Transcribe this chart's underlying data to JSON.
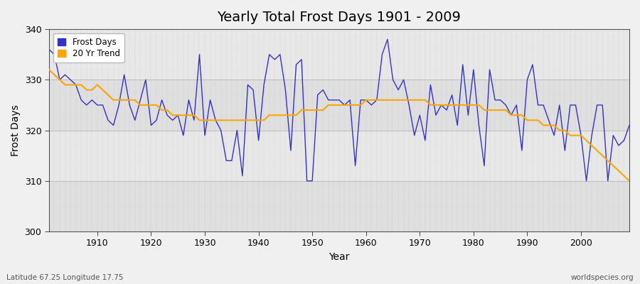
{
  "title": "Yearly Total Frost Days 1901 - 2009",
  "xlabel": "Year",
  "ylabel": "Frost Days",
  "lat_lon_label": "Latitude 67.25 Longitude 17.75",
  "watermark": "worldspecies.org",
  "years": [
    1901,
    1902,
    1903,
    1904,
    1905,
    1906,
    1907,
    1908,
    1909,
    1910,
    1911,
    1912,
    1913,
    1914,
    1915,
    1916,
    1917,
    1918,
    1919,
    1920,
    1921,
    1922,
    1923,
    1924,
    1925,
    1926,
    1927,
    1928,
    1929,
    1930,
    1931,
    1932,
    1933,
    1934,
    1935,
    1936,
    1937,
    1938,
    1939,
    1940,
    1941,
    1942,
    1943,
    1944,
    1945,
    1946,
    1947,
    1948,
    1949,
    1950,
    1951,
    1952,
    1953,
    1954,
    1955,
    1956,
    1957,
    1958,
    1959,
    1960,
    1961,
    1962,
    1963,
    1964,
    1965,
    1966,
    1967,
    1968,
    1969,
    1970,
    1971,
    1972,
    1973,
    1974,
    1975,
    1976,
    1977,
    1978,
    1979,
    1980,
    1981,
    1982,
    1983,
    1984,
    1985,
    1986,
    1987,
    1988,
    1989,
    1990,
    1991,
    1992,
    1993,
    1994,
    1995,
    1996,
    1997,
    1998,
    1999,
    2000,
    2001,
    2002,
    2003,
    2004,
    2005,
    2006,
    2007,
    2008,
    2009
  ],
  "frost_days": [
    336,
    335,
    330,
    331,
    330,
    329,
    326,
    325,
    326,
    325,
    325,
    322,
    321,
    325,
    331,
    325,
    322,
    326,
    330,
    321,
    322,
    326,
    323,
    322,
    323,
    319,
    326,
    322,
    335,
    319,
    326,
    322,
    320,
    314,
    314,
    320,
    311,
    329,
    328,
    318,
    329,
    335,
    334,
    335,
    328,
    316,
    333,
    334,
    310,
    310,
    327,
    328,
    326,
    326,
    326,
    325,
    326,
    313,
    326,
    326,
    325,
    326,
    335,
    338,
    330,
    328,
    330,
    325,
    319,
    323,
    318,
    329,
    323,
    325,
    324,
    327,
    321,
    333,
    323,
    332,
    321,
    313,
    332,
    326,
    326,
    325,
    323,
    325,
    316,
    330,
    333,
    325,
    325,
    322,
    319,
    325,
    316,
    325,
    325,
    319,
    310,
    319,
    325,
    325,
    310,
    319,
    317,
    318,
    321
  ],
  "trend_years": [
    1901,
    1902,
    1903,
    1904,
    1905,
    1906,
    1907,
    1908,
    1909,
    1910,
    1911,
    1912,
    1913,
    1914,
    1915,
    1916,
    1917,
    1918,
    1919,
    1920,
    1921,
    1922,
    1923,
    1924,
    1925,
    1926,
    1927,
    1928,
    1929,
    1930,
    1931,
    1932,
    1933,
    1934,
    1935,
    1936,
    1937,
    1938,
    1939,
    1940,
    1941,
    1942,
    1943,
    1944,
    1945,
    1946,
    1947,
    1948,
    1949,
    1950,
    1951,
    1952,
    1953,
    1954,
    1955,
    1956,
    1957,
    1958,
    1959,
    1960,
    1961,
    1962,
    1963,
    1964,
    1965,
    1966,
    1967,
    1968,
    1969,
    1970,
    1971,
    1972,
    1973,
    1974,
    1975,
    1976,
    1977,
    1978,
    1979,
    1980,
    1981,
    1982,
    1983,
    1984,
    1985,
    1986,
    1987,
    1988,
    1989,
    1990,
    1991,
    1992,
    1993,
    1994,
    1995,
    1996,
    1997,
    1998,
    1999,
    2000,
    2001,
    2002,
    2003,
    2004,
    2005,
    2006,
    2007,
    2008,
    2009
  ],
  "trend_values": [
    332,
    331,
    330,
    329,
    329,
    329,
    329,
    328,
    328,
    329,
    328,
    327,
    326,
    326,
    326,
    326,
    326,
    325,
    325,
    325,
    325,
    324,
    324,
    323,
    323,
    323,
    323,
    323,
    322,
    322,
    322,
    322,
    322,
    322,
    322,
    322,
    322,
    322,
    322,
    322,
    322,
    323,
    323,
    323,
    323,
    323,
    323,
    324,
    324,
    324,
    324,
    324,
    325,
    325,
    325,
    325,
    325,
    325,
    325,
    326,
    326,
    326,
    326,
    326,
    326,
    326,
    326,
    326,
    326,
    326,
    326,
    325,
    325,
    325,
    325,
    325,
    325,
    325,
    325,
    325,
    325,
    324,
    324,
    324,
    324,
    324,
    323,
    323,
    323,
    322,
    322,
    322,
    321,
    321,
    321,
    320,
    320,
    319,
    319,
    319,
    318,
    317,
    316,
    315,
    314,
    313,
    312,
    311,
    310
  ],
  "ylim": [
    300,
    340
  ],
  "yticks": [
    300,
    310,
    320,
    330,
    340
  ],
  "xlim": [
    1901,
    2009
  ],
  "xticks": [
    1910,
    1920,
    1930,
    1940,
    1950,
    1960,
    1970,
    1980,
    1990,
    2000
  ],
  "fig_bg_color": "#f0f0f0",
  "plot_bg_color": "#e8e8e8",
  "plot_bg_color2": "#d8d8d8",
  "blue_color": "#3333cc",
  "orange_color": "#ffa500",
  "grid_color": "#bbbbbb",
  "title_fontsize": 14,
  "label_fontsize": 10,
  "tick_fontsize": 9
}
